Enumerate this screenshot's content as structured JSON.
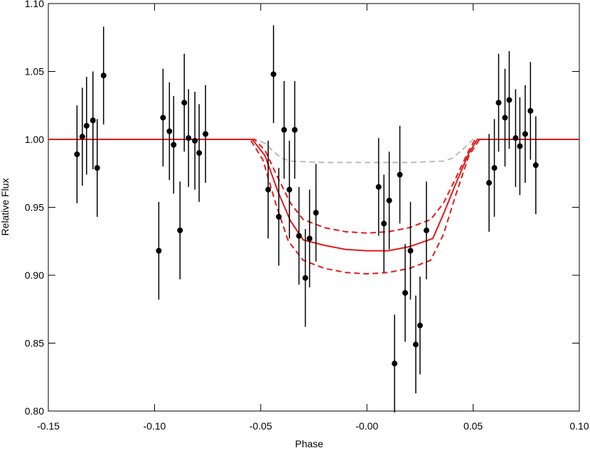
{
  "chart_data": {
    "type": "scatter",
    "x_label": "Phase",
    "y_label": "Relative Flux",
    "xlim": [
      -0.15,
      0.1
    ],
    "ylim": [
      0.8,
      1.1
    ],
    "xticks": [
      {
        "value": -0.15,
        "label": "-0.15"
      },
      {
        "value": -0.1,
        "label": "-0.10"
      },
      {
        "value": -0.05,
        "label": "-0.05"
      },
      {
        "value": 0,
        "label": "-0.00"
      },
      {
        "value": 0.05,
        "label": "0.05"
      },
      {
        "value": 0.1,
        "label": "0.10"
      }
    ],
    "yticks": [
      {
        "value": 0.8,
        "label": "0.80"
      },
      {
        "value": 0.85,
        "label": "0.85"
      },
      {
        "value": 0.9,
        "label": "0.90"
      },
      {
        "value": 0.95,
        "label": "0.95"
      },
      {
        "value": 1.0,
        "label": "1.00"
      },
      {
        "value": 1.05,
        "label": "1.05"
      },
      {
        "value": 1.1,
        "label": "1.10"
      }
    ],
    "points": {
      "color": "#000000",
      "x": [
        -0.1365,
        -0.134,
        -0.132,
        -0.129,
        -0.127,
        -0.124,
        -0.098,
        -0.096,
        -0.093,
        -0.091,
        -0.088,
        -0.086,
        -0.084,
        -0.081,
        -0.079,
        -0.076,
        -0.0465,
        -0.044,
        -0.0415,
        -0.039,
        -0.0365,
        -0.034,
        -0.032,
        -0.029,
        -0.027,
        -0.024,
        0.0055,
        0.008,
        0.0105,
        0.013,
        0.0155,
        0.018,
        0.0205,
        0.023,
        0.025,
        0.028,
        0.0575,
        0.06,
        0.062,
        0.065,
        0.067,
        0.07,
        0.072,
        0.0745,
        0.077,
        0.0795
      ],
      "values": [
        0.989,
        1.002,
        1.01,
        1.014,
        0.979,
        1.047,
        0.918,
        1.016,
        1.006,
        0.996,
        0.933,
        1.027,
        1.001,
        0.999,
        0.99,
        1.004,
        0.963,
        1.048,
        0.943,
        1.007,
        0.963,
        1.007,
        0.929,
        0.898,
        0.927,
        0.946,
        0.965,
        0.938,
        0.955,
        0.835,
        0.974,
        0.887,
        0.918,
        0.849,
        0.863,
        0.933,
        0.968,
        0.979,
        1.027,
        1.016,
        1.029,
        1.001,
        0.995,
        1.004,
        1.021,
        0.981
      ],
      "errors": [
        0.036,
        0.036,
        0.036,
        0.036,
        0.036,
        0.036,
        0.036,
        0.036,
        0.036,
        0.036,
        0.036,
        0.036,
        0.036,
        0.036,
        0.036,
        0.036,
        0.036,
        0.036,
        0.036,
        0.036,
        0.036,
        0.036,
        0.036,
        0.036,
        0.036,
        0.036,
        0.036,
        0.036,
        0.036,
        0.036,
        0.036,
        0.036,
        0.036,
        0.036,
        0.036,
        0.036,
        0.036,
        0.036,
        0.036,
        0.036,
        0.036,
        0.036,
        0.036,
        0.036,
        0.036,
        0.036
      ]
    },
    "lines": [
      {
        "color": "#bbbbbb",
        "style": "dashed",
        "x": [
          -0.15,
          -0.052,
          -0.048,
          -0.044,
          -0.04,
          -0.036,
          -0.02,
          0,
          0.02,
          0.036,
          0.04,
          0.044,
          0.048,
          0.05,
          0.1
        ],
        "values": [
          1.0,
          1.0,
          0.997,
          0.991,
          0.986,
          0.984,
          0.983,
          0.983,
          0.983,
          0.984,
          0.986,
          0.991,
          0.997,
          1.0,
          1.0
        ]
      },
      {
        "color": "#e41a1c",
        "style": "dashed",
        "x": [
          -0.15,
          -0.053,
          -0.048,
          -0.042,
          -0.036,
          -0.03,
          -0.02,
          -0.01,
          0,
          0.01,
          0.02,
          0.03,
          0.036,
          0.042,
          0.048,
          0.051,
          0.1
        ],
        "values": [
          1.0,
          1.0,
          0.992,
          0.972,
          0.953,
          0.941,
          0.935,
          0.932,
          0.931,
          0.932,
          0.935,
          0.941,
          0.953,
          0.972,
          0.992,
          1.0,
          1.0
        ]
      },
      {
        "color": "#e41a1c",
        "style": "solid",
        "x": [
          -0.15,
          -0.054,
          -0.048,
          -0.042,
          -0.036,
          -0.03,
          -0.02,
          -0.01,
          0,
          0.01,
          0.02,
          0.031,
          0.036,
          0.042,
          0.048,
          0.052,
          0.1
        ],
        "values": [
          1.0,
          1.0,
          0.988,
          0.962,
          0.94,
          0.926,
          0.922,
          0.919,
          0.918,
          0.918,
          0.921,
          0.927,
          0.945,
          0.968,
          0.99,
          1.0,
          1.0
        ]
      },
      {
        "color": "#e41a1c",
        "style": "dashed",
        "x": [
          -0.15,
          -0.055,
          -0.049,
          -0.043,
          -0.037,
          -0.03,
          -0.02,
          -0.01,
          0,
          0.01,
          0.02,
          0.03,
          0.036,
          0.042,
          0.048,
          0.053,
          0.1
        ],
        "values": [
          1.0,
          1.0,
          0.985,
          0.953,
          0.925,
          0.911,
          0.905,
          0.902,
          0.901,
          0.902,
          0.905,
          0.911,
          0.93,
          0.96,
          0.988,
          1.0,
          1.0
        ]
      }
    ]
  }
}
